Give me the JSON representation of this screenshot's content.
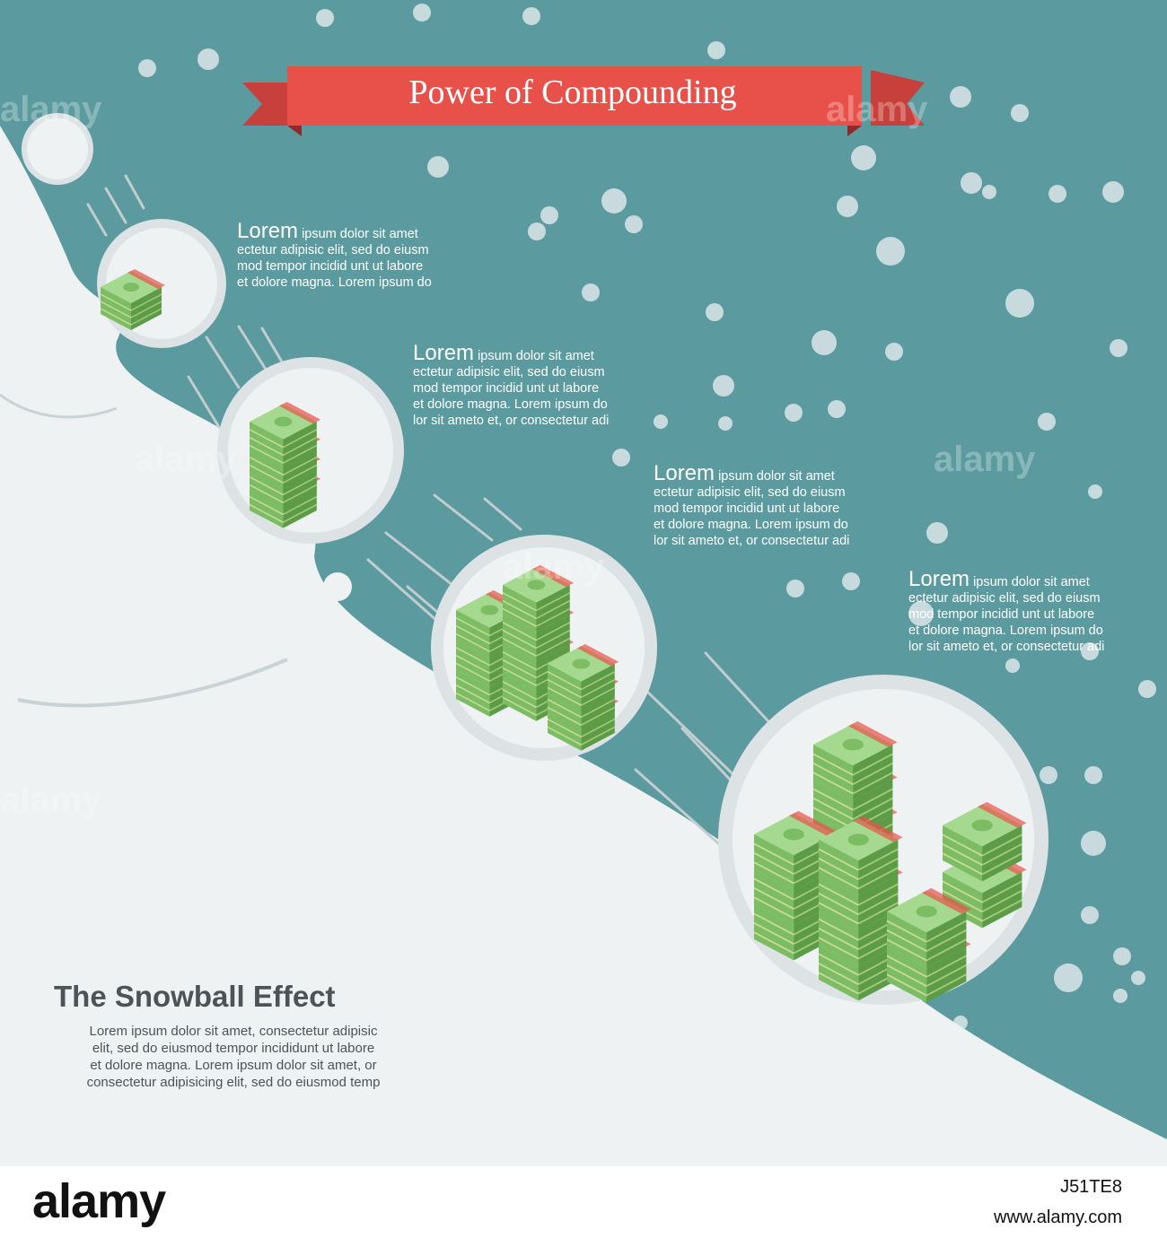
{
  "banner": {
    "title": "Power of Compounding",
    "ribbon_color": "#e8514a"
  },
  "colors": {
    "background": "#5b9ba0",
    "snow": "#eef2f2",
    "bubble": "#dde3e4",
    "money_light": "#a5d98f",
    "money_dark": "#5c9c46"
  },
  "steps": [
    {
      "head": "Lorem",
      "lines": [
        "ipsum dolor sit amet",
        "ectetur adipisic elit, sed do eiusm",
        "mod tempor  incidid unt ut labore",
        "et dolore  magna. Lorem ipsum do"
      ]
    },
    {
      "head": "Lorem",
      "lines": [
        "ipsum dolor sit amet",
        "ectetur adipisic elit, sed do eiusm",
        "mod tempor  incidid unt ut labore",
        "et dolore  magna. Lorem ipsum do",
        "lor sit ameto et, or consectetur adi"
      ]
    },
    {
      "head": "Lorem",
      "lines": [
        "ipsum dolor sit amet",
        "ectetur adipisic elit, sed do eiusm",
        "mod tempor  incidid unt ut labore",
        "et dolore  magna. Lorem ipsum do",
        "lor sit ameto et, or consectetur adi"
      ]
    },
    {
      "head": "Lorem",
      "lines": [
        "ipsum dolor sit amet",
        "ectetur adipisic elit, sed do eiusm",
        "mod tempor  incidid unt ut labore",
        "et dolore  magna. Lorem ipsum do",
        "lor sit ameto et, or consectetur adi"
      ]
    }
  ],
  "snowball_effect": {
    "title": "The Snowball Effect",
    "lines": [
      "Lorem ipsum dolor sit amet,  consectetur adipisic",
      "elit, sed do eiusmod tempor  incididunt ut labore",
      "et dolore  magna. Lorem ipsum dolor sit amet, or",
      "consectetur adipisicing elit, sed do eiusmod temp"
    ]
  },
  "watermark": "alamy",
  "footer": {
    "logo": "alamy",
    "image_id": "J51TE8",
    "url": "www.alamy.com"
  }
}
